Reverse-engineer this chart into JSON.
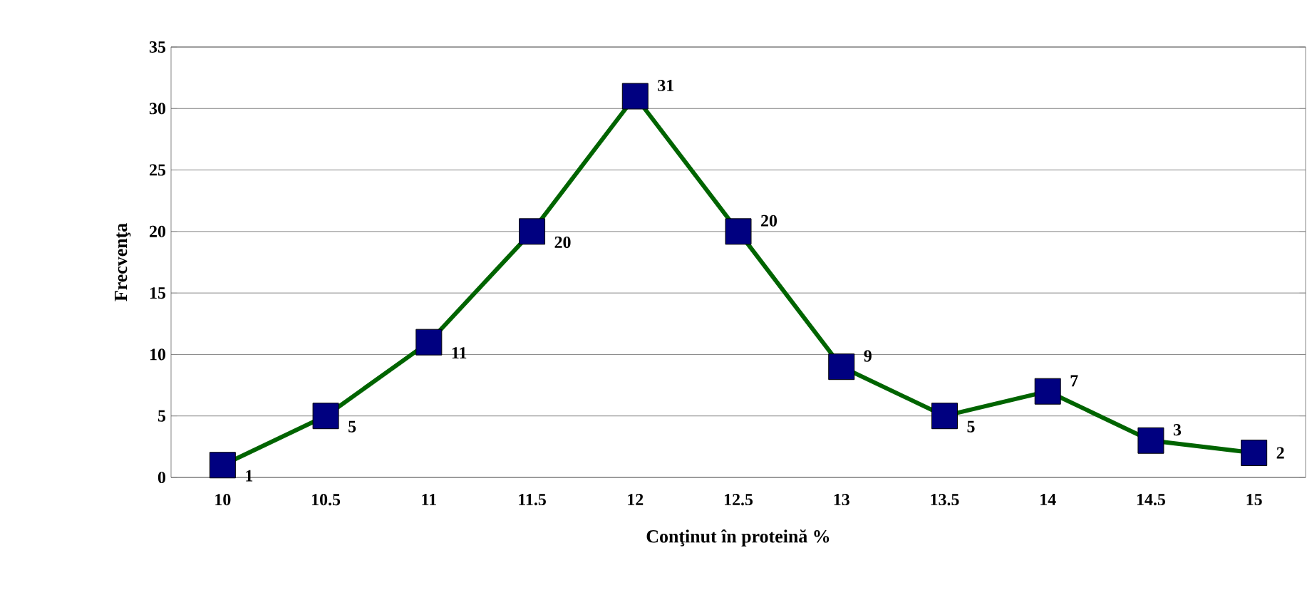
{
  "chart_data": {
    "type": "line",
    "xlabel": "Conţinut în proteină %",
    "ylabel": "Frecvenţa",
    "categories": [
      "10",
      "10.5",
      "11",
      "11.5",
      "12",
      "12.5",
      "13",
      "13.5",
      "14",
      "14.5",
      "15"
    ],
    "series": [
      {
        "color": "#006400",
        "values": [
          1,
          5,
          11,
          20,
          31,
          20,
          9,
          5,
          7,
          3,
          2
        ]
      }
    ],
    "ylim": [
      0,
      35
    ],
    "yticks": [
      0,
      5,
      10,
      15,
      20,
      25,
      30,
      35
    ],
    "grid": "y",
    "marker": "square",
    "line_style": "solid",
    "data_labels": true
  }
}
